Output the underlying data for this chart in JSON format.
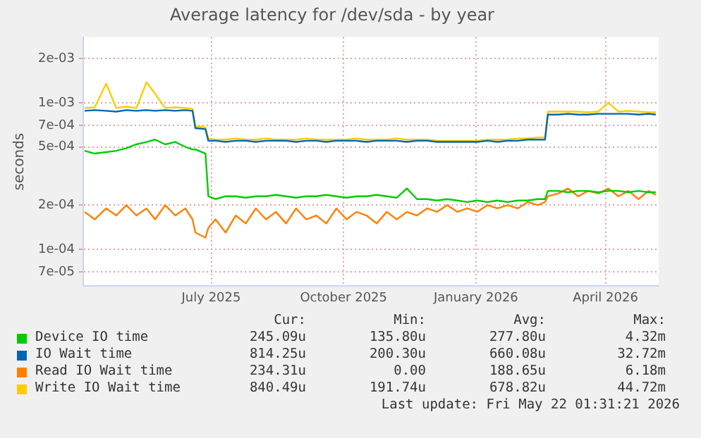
{
  "chart_data": {
    "type": "line",
    "title": "Average latency for /dev/sda - by year",
    "ylabel": "seconds",
    "x": [
      "2025-04-04",
      "2025-04-11",
      "2025-04-19",
      "2025-04-26",
      "2025-05-03",
      "2025-05-10",
      "2025-05-17",
      "2025-05-23",
      "2025-05-30",
      "2025-06-06",
      "2025-06-13",
      "2025-06-18",
      "2025-06-20",
      "2025-06-27",
      "2025-06-29",
      "2025-07-04",
      "2025-07-11",
      "2025-07-18",
      "2025-07-25",
      "2025-08-01",
      "2025-08-08",
      "2025-08-15",
      "2025-08-22",
      "2025-08-29",
      "2025-09-05",
      "2025-09-12",
      "2025-09-19",
      "2025-09-26",
      "2025-10-03",
      "2025-10-10",
      "2025-10-17",
      "2025-10-24",
      "2025-10-31",
      "2025-11-07",
      "2025-11-14",
      "2025-11-21",
      "2025-11-28",
      "2025-12-05",
      "2025-12-12",
      "2025-12-19",
      "2025-12-26",
      "2026-01-02",
      "2026-01-09",
      "2026-01-16",
      "2026-01-23",
      "2026-01-30",
      "2026-02-06",
      "2026-02-13",
      "2026-02-18",
      "2026-02-20",
      "2026-02-27",
      "2026-03-06",
      "2026-03-13",
      "2026-03-20",
      "2026-03-27",
      "2026-04-03",
      "2026-04-10",
      "2026-04-17",
      "2026-04-24",
      "2026-05-01",
      "2026-05-06"
    ],
    "series": [
      {
        "name": "Device IO time",
        "color": "#00cc00",
        "values": [
          0.00047,
          0.00045,
          0.00046,
          0.00047,
          0.00049,
          0.00052,
          0.00054,
          0.00056,
          0.00052,
          0.00054,
          0.0005,
          0.00048,
          0.00048,
          0.00045,
          0.00023,
          0.00022,
          0.00023,
          0.00023,
          0.000225,
          0.00023,
          0.00023,
          0.000235,
          0.00023,
          0.000225,
          0.00023,
          0.00023,
          0.000235,
          0.00023,
          0.000225,
          0.00023,
          0.00023,
          0.000235,
          0.00023,
          0.000225,
          0.00026,
          0.00022,
          0.00022,
          0.000215,
          0.00022,
          0.000215,
          0.00021,
          0.000215,
          0.00021,
          0.000215,
          0.00021,
          0.000215,
          0.000215,
          0.00022,
          0.00022,
          0.00025,
          0.00025,
          0.000245,
          0.00025,
          0.00025,
          0.000245,
          0.00025,
          0.00025,
          0.000245,
          0.00025,
          0.000245,
          0.000245
        ]
      },
      {
        "name": "IO Wait time",
        "color": "#0066b3",
        "values": [
          0.00088,
          0.00089,
          0.00088,
          0.00087,
          0.00089,
          0.00088,
          0.00089,
          0.00088,
          0.00089,
          0.00088,
          0.00089,
          0.00088,
          0.00067,
          0.00066,
          0.00055,
          0.00055,
          0.00054,
          0.00055,
          0.00055,
          0.00054,
          0.00055,
          0.00055,
          0.00055,
          0.00054,
          0.00055,
          0.00055,
          0.00054,
          0.00055,
          0.00055,
          0.00055,
          0.00054,
          0.00055,
          0.00055,
          0.00055,
          0.00054,
          0.00055,
          0.00055,
          0.00054,
          0.00054,
          0.00054,
          0.00054,
          0.00054,
          0.00055,
          0.00054,
          0.00055,
          0.00055,
          0.00056,
          0.00056,
          0.00056,
          0.00083,
          0.00083,
          0.00084,
          0.00083,
          0.00083,
          0.00084,
          0.00084,
          0.00084,
          0.00084,
          0.00083,
          0.00084,
          0.00083
        ]
      },
      {
        "name": "Read IO Wait time",
        "color": "#ff8000",
        "values": [
          0.00018,
          0.00016,
          0.00019,
          0.00017,
          0.0002,
          0.00017,
          0.00019,
          0.00016,
          0.0002,
          0.00017,
          0.00019,
          0.00016,
          0.00013,
          0.00012,
          0.00014,
          0.00016,
          0.00013,
          0.00017,
          0.00015,
          0.00019,
          0.00016,
          0.00018,
          0.00015,
          0.00019,
          0.00016,
          0.00017,
          0.00015,
          0.00019,
          0.00016,
          0.00018,
          0.00017,
          0.00015,
          0.00018,
          0.00016,
          0.00018,
          0.00017,
          0.00019,
          0.00018,
          0.0002,
          0.00018,
          0.00019,
          0.00018,
          0.0002,
          0.00019,
          0.0002,
          0.00019,
          0.00021,
          0.0002,
          0.00021,
          0.00023,
          0.00024,
          0.00026,
          0.00023,
          0.00025,
          0.00024,
          0.00026,
          0.00023,
          0.00025,
          0.00022,
          0.00025,
          0.000235
        ]
      },
      {
        "name": "Write IO Wait time",
        "color": "#ffcc00",
        "values": [
          0.00092,
          0.00093,
          0.00135,
          0.00092,
          0.00094,
          0.00092,
          0.00138,
          0.00115,
          0.00092,
          0.00093,
          0.00092,
          0.00091,
          0.00069,
          0.00068,
          0.00057,
          0.00056,
          0.00056,
          0.00057,
          0.00056,
          0.00056,
          0.00057,
          0.00056,
          0.00056,
          0.00056,
          0.00057,
          0.00056,
          0.00056,
          0.00056,
          0.00056,
          0.00057,
          0.00056,
          0.00056,
          0.00056,
          0.00057,
          0.00056,
          0.00056,
          0.00056,
          0.00055,
          0.00055,
          0.00055,
          0.00055,
          0.00055,
          0.00056,
          0.00056,
          0.00056,
          0.00057,
          0.00057,
          0.00058,
          0.00058,
          0.00087,
          0.00087,
          0.00087,
          0.00087,
          0.00086,
          0.00087,
          0.001,
          0.00087,
          0.00088,
          0.00087,
          0.00086,
          0.00086
        ]
      }
    ],
    "log": "y",
    "xlim": [
      "2025-04-03",
      "2026-05-08"
    ],
    "xticks": [
      {
        "value": "2025-07-01",
        "label": "July 2025"
      },
      {
        "value": "2025-10-01",
        "label": "October 2025"
      },
      {
        "value": "2026-01-01",
        "label": "January 2026"
      },
      {
        "value": "2026-04-01",
        "label": "April 2026"
      }
    ],
    "ylim": [
      5.6e-05,
      0.0028
    ],
    "yticks": [
      {
        "value": 7e-05,
        "label": "7e-05"
      },
      {
        "value": 0.0001,
        "label": "1e-04"
      },
      {
        "value": 0.0002,
        "label": "2e-04"
      },
      {
        "value": 0.0005,
        "label": "5e-04"
      },
      {
        "value": 0.0007,
        "label": "7e-04"
      },
      {
        "value": 0.001,
        "label": "1e-03"
      },
      {
        "value": 0.002,
        "label": "2e-03"
      }
    ],
    "grid": true,
    "legend": "bottom",
    "annotations": [
      "Cur:",
      "Min:",
      "Avg:",
      "Max:",
      "245.09u",
      "135.80u",
      "277.80u",
      "4.32m",
      "814.25u",
      "200.30u",
      "660.08u",
      "32.72m",
      "234.31u",
      "0.00",
      "188.65u",
      "6.18m",
      "840.49u",
      "191.74u",
      "678.82u",
      "44.72m",
      "Last update: Fri May 22 01:31:21 2026"
    ]
  }
}
